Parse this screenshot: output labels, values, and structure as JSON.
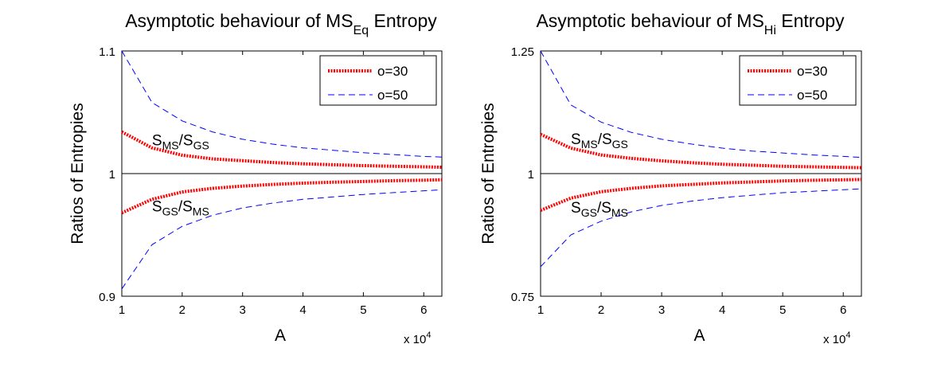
{
  "chart_data": [
    {
      "type": "line",
      "title": {
        "main": "Asymptotic behaviour of MS",
        "sub": "Eq",
        "tail": " Entropy"
      },
      "xlabel": "A",
      "ylabel": "Ratios of Entropies",
      "x_multiplier": {
        "base": "x 10",
        "exponent": "4"
      },
      "xlim": [
        1,
        6.3
      ],
      "ylim": [
        0.9,
        1.1
      ],
      "xticks": [
        1,
        2,
        3,
        4,
        5,
        6
      ],
      "yticks": [
        0.9,
        1,
        1.1
      ],
      "ytick_labels": [
        "0.9",
        "1",
        "1.1"
      ],
      "reference_line": 1,
      "legend": {
        "location": "top-right",
        "entries": [
          "o=30",
          "o=50"
        ]
      },
      "annotations": [
        {
          "id": "upper",
          "parts": [
            "S",
            "MS",
            "/S",
            "GS"
          ],
          "x": 1.5,
          "y": 1.027
        },
        {
          "id": "lower",
          "parts": [
            "S",
            "GS",
            "/S",
            "MS"
          ],
          "x": 1.5,
          "y": 0.973
        }
      ],
      "x": [
        1,
        1.5,
        2,
        2.5,
        3,
        3.5,
        4,
        4.5,
        5,
        5.5,
        6,
        6.3
      ],
      "series": [
        {
          "name": "o=30",
          "label": "S_MS/S_GS",
          "color": "#ff0000",
          "style": "dotted",
          "values": [
            1.034,
            1.021,
            1.015,
            1.012,
            1.0105,
            1.009,
            1.008,
            1.0072,
            1.0065,
            1.006,
            1.0055,
            1.0052
          ]
        },
        {
          "name": "o=30",
          "label": "S_GS/S_MS",
          "color": "#ff0000",
          "style": "dotted",
          "values": [
            0.968,
            0.979,
            0.985,
            0.988,
            0.9898,
            0.9912,
            0.9922,
            0.993,
            0.9936,
            0.9942,
            0.9946,
            0.995
          ]
        },
        {
          "name": "o=50",
          "label": "S_MS/S_GS",
          "color": "#0000ff",
          "style": "dashed",
          "values": [
            1.1,
            1.058,
            1.043,
            1.034,
            1.028,
            1.024,
            1.021,
            1.019,
            1.017,
            1.0155,
            1.014,
            1.0135
          ]
        },
        {
          "name": "o=50",
          "label": "S_GS/S_MS",
          "color": "#0000ff",
          "style": "dashed",
          "values": [
            0.906,
            0.942,
            0.957,
            0.966,
            0.972,
            0.976,
            0.979,
            0.981,
            0.983,
            0.9845,
            0.986,
            0.9868
          ]
        }
      ]
    },
    {
      "type": "line",
      "title": {
        "main": "Asymptotic behaviour of MS",
        "sub": "Hi",
        "tail": " Entropy"
      },
      "xlabel": "A",
      "ylabel": "Ratios of Entropies",
      "x_multiplier": {
        "base": "x 10",
        "exponent": "4"
      },
      "xlim": [
        1,
        6.3
      ],
      "ylim": [
        0.75,
        1.25
      ],
      "xticks": [
        1,
        2,
        3,
        4,
        5,
        6
      ],
      "yticks": [
        0.75,
        1,
        1.25
      ],
      "ytick_labels": [
        "0.75",
        "1",
        "1.25"
      ],
      "reference_line": 1,
      "legend": {
        "location": "top-right",
        "entries": [
          "o=30",
          "o=50"
        ]
      },
      "annotations": [
        {
          "id": "upper",
          "parts": [
            "S",
            "MS",
            "/S",
            "GS"
          ],
          "x": 1.5,
          "y": 1.07
        },
        {
          "id": "lower",
          "parts": [
            "S",
            "GS",
            "/S",
            "MS"
          ],
          "x": 1.5,
          "y": 0.93
        }
      ],
      "x": [
        1,
        1.5,
        2,
        2.5,
        3,
        3.5,
        4,
        4.5,
        5,
        5.5,
        6,
        6.3
      ],
      "series": [
        {
          "name": "o=30",
          "label": "S_MS/S_GS",
          "color": "#ff0000",
          "style": "dotted",
          "values": [
            1.08,
            1.052,
            1.038,
            1.031,
            1.026,
            1.022,
            1.019,
            1.017,
            1.015,
            1.0138,
            1.0127,
            1.012
          ]
        },
        {
          "name": "o=30",
          "label": "S_GS/S_MS",
          "color": "#ff0000",
          "style": "dotted",
          "values": [
            0.925,
            0.95,
            0.963,
            0.97,
            0.975,
            0.978,
            0.981,
            0.983,
            0.985,
            0.9863,
            0.9874,
            0.988
          ]
        },
        {
          "name": "o=50",
          "label": "S_MS/S_GS",
          "color": "#0000ff",
          "style": "dashed",
          "values": [
            1.25,
            1.14,
            1.105,
            1.084,
            1.07,
            1.06,
            1.052,
            1.046,
            1.042,
            1.038,
            1.035,
            1.033
          ]
        },
        {
          "name": "o=50",
          "label": "S_GS/S_MS",
          "color": "#0000ff",
          "style": "dashed",
          "values": [
            0.81,
            0.875,
            0.903,
            0.922,
            0.935,
            0.944,
            0.951,
            0.956,
            0.961,
            0.964,
            0.967,
            0.969
          ]
        }
      ]
    }
  ]
}
